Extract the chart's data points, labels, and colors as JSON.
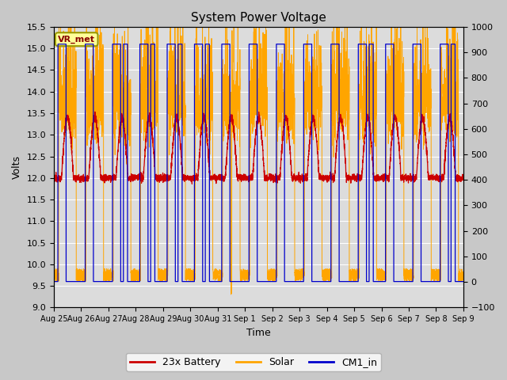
{
  "title": "System Power Voltage",
  "xlabel": "Time",
  "ylabel_left": "Volts",
  "ylim_left": [
    9.0,
    15.5
  ],
  "ylim_right": [
    -100,
    1000
  ],
  "yticks_left": [
    9.0,
    9.5,
    10.0,
    10.5,
    11.0,
    11.5,
    12.0,
    12.5,
    13.0,
    13.5,
    14.0,
    14.5,
    15.0,
    15.5
  ],
  "yticks_right": [
    -100,
    0,
    100,
    200,
    300,
    400,
    500,
    600,
    700,
    800,
    900,
    1000
  ],
  "xtick_labels": [
    "Aug 25",
    "Aug 26",
    "Aug 27",
    "Aug 28",
    "Aug 29",
    "Aug 30",
    "Aug 31",
    "Sep 1",
    "Sep 2",
    "Sep 3",
    "Sep 4",
    "Sep 5",
    "Sep 6",
    "Sep 7",
    "Sep 8",
    "Sep 9"
  ],
  "color_battery": "#cc0000",
  "color_solar": "#ffa500",
  "color_cm1": "#0000cc",
  "fig_facecolor": "#c8c8c8",
  "plot_facecolor": "#dcdcdc",
  "annotation_text": "VR_met",
  "annotation_facecolor": "#ffff99",
  "annotation_edgecolor": "#999900",
  "annotation_textcolor": "#880000",
  "legend_labels": [
    "23x Battery",
    "Solar",
    "CM1_in"
  ],
  "n_days": 15,
  "ppd": 288
}
